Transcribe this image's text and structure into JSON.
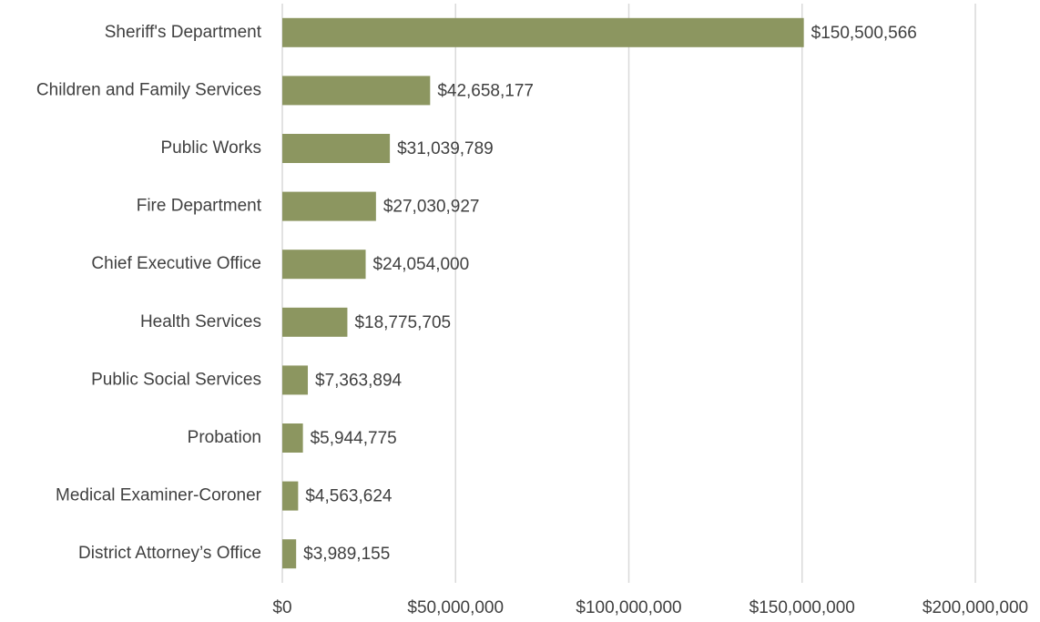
{
  "chart_data": {
    "type": "bar",
    "orientation": "horizontal",
    "categories": [
      "Sheriff's Department",
      "Children and Family Services",
      "Public Works",
      "Fire Department",
      "Chief Executive Office",
      "Health Services",
      "Public Social Services",
      "Probation",
      "Medical Examiner-Coroner",
      "District Attorney’s Office"
    ],
    "values": [
      150500566,
      42658177,
      31039789,
      27030927,
      24054000,
      18775705,
      7363894,
      5944775,
      4563624,
      3989155
    ],
    "value_labels": [
      "$150,500,566",
      "$42,658,177",
      "$31,039,789",
      "$27,030,927",
      "$24,054,000",
      "$18,775,705",
      "$7,363,894",
      "$5,944,775",
      "$4,563,624",
      "$3,989,155"
    ],
    "color": "#8c9660",
    "xlim": [
      0,
      200000000
    ],
    "xticks": [
      {
        "value": 0,
        "label": "$0"
      },
      {
        "value": 50000000,
        "label": "$50,000,000"
      },
      {
        "value": 100000000,
        "label": "$100,000,000"
      },
      {
        "value": 150000000,
        "label": "$150,000,000"
      },
      {
        "value": 200000000,
        "label": "$200,000,000"
      }
    ],
    "grid": true
  }
}
